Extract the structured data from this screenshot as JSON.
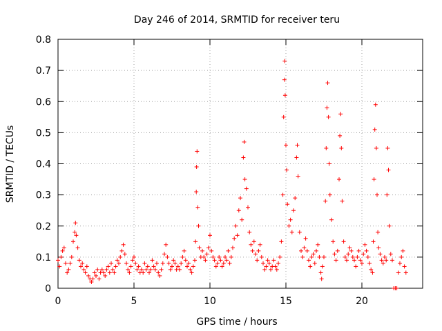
{
  "chart_data": {
    "type": "scatter",
    "title": "Day 246 of 2014, SRMTID for receiver teru",
    "xlabel": "GPS time / hours",
    "ylabel": "SRMTID / TECUs",
    "xlim": [
      0,
      24
    ],
    "ylim": [
      0,
      0.8
    ],
    "xticks": [
      0,
      5,
      10,
      15,
      20
    ],
    "yticks": [
      0,
      0.1,
      0.2,
      0.3,
      0.4,
      0.5,
      0.6,
      0.7,
      0.8
    ],
    "grid": true,
    "marker": "+",
    "color": "#ff0000",
    "series": [
      {
        "name": "SRMTID",
        "points": [
          [
            0.0,
            0.09
          ],
          [
            0.1,
            0.07
          ],
          [
            0.2,
            0.1
          ],
          [
            0.3,
            0.12
          ],
          [
            0.4,
            0.13
          ],
          [
            0.5,
            0.08
          ],
          [
            0.6,
            0.05
          ],
          [
            0.7,
            0.06
          ],
          [
            0.8,
            0.08
          ],
          [
            0.9,
            0.1
          ],
          [
            1.0,
            0.15
          ],
          [
            1.1,
            0.18
          ],
          [
            1.15,
            0.21
          ],
          [
            1.2,
            0.17
          ],
          [
            1.3,
            0.13
          ],
          [
            1.4,
            0.09
          ],
          [
            1.5,
            0.07
          ],
          [
            1.6,
            0.08
          ],
          [
            1.7,
            0.06
          ],
          [
            1.8,
            0.05
          ],
          [
            1.9,
            0.07
          ],
          [
            2.0,
            0.04
          ],
          [
            2.1,
            0.03
          ],
          [
            2.2,
            0.02
          ],
          [
            2.3,
            0.03
          ],
          [
            2.4,
            0.05
          ],
          [
            2.5,
            0.04
          ],
          [
            2.6,
            0.06
          ],
          [
            2.7,
            0.03
          ],
          [
            2.8,
            0.05
          ],
          [
            2.9,
            0.06
          ],
          [
            3.0,
            0.05
          ],
          [
            3.1,
            0.04
          ],
          [
            3.2,
            0.06
          ],
          [
            3.3,
            0.07
          ],
          [
            3.4,
            0.05
          ],
          [
            3.5,
            0.08
          ],
          [
            3.6,
            0.06
          ],
          [
            3.7,
            0.05
          ],
          [
            3.8,
            0.07
          ],
          [
            3.9,
            0.09
          ],
          [
            4.0,
            0.08
          ],
          [
            4.1,
            0.1
          ],
          [
            4.2,
            0.12
          ],
          [
            4.3,
            0.14
          ],
          [
            4.4,
            0.11
          ],
          [
            4.5,
            0.08
          ],
          [
            4.6,
            0.06
          ],
          [
            4.7,
            0.05
          ],
          [
            4.8,
            0.07
          ],
          [
            4.9,
            0.09
          ],
          [
            5.0,
            0.1
          ],
          [
            5.1,
            0.08
          ],
          [
            5.2,
            0.06
          ],
          [
            5.3,
            0.07
          ],
          [
            5.4,
            0.05
          ],
          [
            5.5,
            0.06
          ],
          [
            5.6,
            0.05
          ],
          [
            5.7,
            0.08
          ],
          [
            5.8,
            0.06
          ],
          [
            5.9,
            0.07
          ],
          [
            6.0,
            0.05
          ],
          [
            6.1,
            0.06
          ],
          [
            6.2,
            0.09
          ],
          [
            6.3,
            0.07
          ],
          [
            6.4,
            0.06
          ],
          [
            6.5,
            0.08
          ],
          [
            6.6,
            0.05
          ],
          [
            6.7,
            0.04
          ],
          [
            6.8,
            0.06
          ],
          [
            6.9,
            0.08
          ],
          [
            7.0,
            0.11
          ],
          [
            7.1,
            0.14
          ],
          [
            7.2,
            0.1
          ],
          [
            7.3,
            0.08
          ],
          [
            7.4,
            0.06
          ],
          [
            7.5,
            0.07
          ],
          [
            7.6,
            0.09
          ],
          [
            7.7,
            0.08
          ],
          [
            7.8,
            0.06
          ],
          [
            7.9,
            0.07
          ],
          [
            8.0,
            0.06
          ],
          [
            8.1,
            0.08
          ],
          [
            8.2,
            0.1
          ],
          [
            8.3,
            0.12
          ],
          [
            8.4,
            0.09
          ],
          [
            8.5,
            0.07
          ],
          [
            8.6,
            0.08
          ],
          [
            8.7,
            0.06
          ],
          [
            8.8,
            0.05
          ],
          [
            8.9,
            0.07
          ],
          [
            9.0,
            0.09
          ],
          [
            9.05,
            0.15
          ],
          [
            9.1,
            0.31
          ],
          [
            9.12,
            0.39
          ],
          [
            9.15,
            0.44
          ],
          [
            9.2,
            0.26
          ],
          [
            9.25,
            0.2
          ],
          [
            9.3,
            0.13
          ],
          [
            9.4,
            0.1
          ],
          [
            9.5,
            0.12
          ],
          [
            9.6,
            0.1
          ],
          [
            9.7,
            0.09
          ],
          [
            9.8,
            0.11
          ],
          [
            9.9,
            0.13
          ],
          [
            10.0,
            0.17
          ],
          [
            10.1,
            0.12
          ],
          [
            10.2,
            0.1
          ],
          [
            10.3,
            0.09
          ],
          [
            10.4,
            0.07
          ],
          [
            10.5,
            0.08
          ],
          [
            10.6,
            0.1
          ],
          [
            10.7,
            0.09
          ],
          [
            10.8,
            0.07
          ],
          [
            10.9,
            0.08
          ],
          [
            11.0,
            0.1
          ],
          [
            11.1,
            0.09
          ],
          [
            11.2,
            0.12
          ],
          [
            11.3,
            0.08
          ],
          [
            11.4,
            0.1
          ],
          [
            11.5,
            0.13
          ],
          [
            11.6,
            0.16
          ],
          [
            11.7,
            0.2
          ],
          [
            11.8,
            0.17
          ],
          [
            11.9,
            0.25
          ],
          [
            12.0,
            0.29
          ],
          [
            12.1,
            0.22
          ],
          [
            12.2,
            0.42
          ],
          [
            12.25,
            0.47
          ],
          [
            12.3,
            0.35
          ],
          [
            12.4,
            0.32
          ],
          [
            12.5,
            0.26
          ],
          [
            12.6,
            0.18
          ],
          [
            12.7,
            0.14
          ],
          [
            12.8,
            0.12
          ],
          [
            12.9,
            0.15
          ],
          [
            13.0,
            0.11
          ],
          [
            13.1,
            0.09
          ],
          [
            13.2,
            0.12
          ],
          [
            13.3,
            0.14
          ],
          [
            13.4,
            0.1
          ],
          [
            13.5,
            0.08
          ],
          [
            13.6,
            0.06
          ],
          [
            13.7,
            0.07
          ],
          [
            13.8,
            0.09
          ],
          [
            13.9,
            0.08
          ],
          [
            14.0,
            0.06
          ],
          [
            14.1,
            0.07
          ],
          [
            14.2,
            0.09
          ],
          [
            14.3,
            0.07
          ],
          [
            14.4,
            0.06
          ],
          [
            14.5,
            0.08
          ],
          [
            14.6,
            0.1
          ],
          [
            14.7,
            0.15
          ],
          [
            14.8,
            0.3
          ],
          [
            14.85,
            0.55
          ],
          [
            14.9,
            0.67
          ],
          [
            14.92,
            0.73
          ],
          [
            14.95,
            0.62
          ],
          [
            15.0,
            0.46
          ],
          [
            15.05,
            0.38
          ],
          [
            15.1,
            0.27
          ],
          [
            15.2,
            0.2
          ],
          [
            15.3,
            0.22
          ],
          [
            15.4,
            0.18
          ],
          [
            15.5,
            0.25
          ],
          [
            15.6,
            0.29
          ],
          [
            15.7,
            0.42
          ],
          [
            15.75,
            0.46
          ],
          [
            15.8,
            0.36
          ],
          [
            15.9,
            0.18
          ],
          [
            16.0,
            0.12
          ],
          [
            16.1,
            0.1
          ],
          [
            16.2,
            0.13
          ],
          [
            16.3,
            0.16
          ],
          [
            16.4,
            0.12
          ],
          [
            16.5,
            0.09
          ],
          [
            16.6,
            0.07
          ],
          [
            16.7,
            0.1
          ],
          [
            16.8,
            0.11
          ],
          [
            16.9,
            0.08
          ],
          [
            17.0,
            0.12
          ],
          [
            17.1,
            0.14
          ],
          [
            17.2,
            0.1
          ],
          [
            17.3,
            0.05
          ],
          [
            17.35,
            0.03
          ],
          [
            17.4,
            0.07
          ],
          [
            17.5,
            0.1
          ],
          [
            17.6,
            0.28
          ],
          [
            17.65,
            0.45
          ],
          [
            17.7,
            0.58
          ],
          [
            17.75,
            0.66
          ],
          [
            17.8,
            0.55
          ],
          [
            17.85,
            0.4
          ],
          [
            17.9,
            0.3
          ],
          [
            18.0,
            0.22
          ],
          [
            18.1,
            0.15
          ],
          [
            18.2,
            0.11
          ],
          [
            18.3,
            0.09
          ],
          [
            18.4,
            0.12
          ],
          [
            18.5,
            0.35
          ],
          [
            18.55,
            0.49
          ],
          [
            18.6,
            0.56
          ],
          [
            18.65,
            0.45
          ],
          [
            18.7,
            0.28
          ],
          [
            18.8,
            0.15
          ],
          [
            18.9,
            0.1
          ],
          [
            19.0,
            0.09
          ],
          [
            19.1,
            0.11
          ],
          [
            19.2,
            0.13
          ],
          [
            19.3,
            0.12
          ],
          [
            19.4,
            0.1
          ],
          [
            19.5,
            0.09
          ],
          [
            19.6,
            0.07
          ],
          [
            19.7,
            0.1
          ],
          [
            19.8,
            0.12
          ],
          [
            19.9,
            0.09
          ],
          [
            20.0,
            0.08
          ],
          [
            20.1,
            0.11
          ],
          [
            20.2,
            0.14
          ],
          [
            20.3,
            0.12
          ],
          [
            20.4,
            0.1
          ],
          [
            20.5,
            0.08
          ],
          [
            20.6,
            0.06
          ],
          [
            20.7,
            0.05
          ],
          [
            20.75,
            0.15
          ],
          [
            20.8,
            0.35
          ],
          [
            20.85,
            0.51
          ],
          [
            20.9,
            0.59
          ],
          [
            20.95,
            0.45
          ],
          [
            21.0,
            0.3
          ],
          [
            21.05,
            0.18
          ],
          [
            21.1,
            0.13
          ],
          [
            21.2,
            0.11
          ],
          [
            21.3,
            0.09
          ],
          [
            21.4,
            0.08
          ],
          [
            21.5,
            0.1
          ],
          [
            21.6,
            0.09
          ],
          [
            21.65,
            0.3
          ],
          [
            21.7,
            0.45
          ],
          [
            21.75,
            0.38
          ],
          [
            21.8,
            0.2
          ],
          [
            21.9,
            0.11
          ],
          [
            22.0,
            0.09
          ],
          [
            22.1,
            0.0
          ],
          [
            22.2,
            0.0
          ],
          [
            22.3,
            0.0
          ],
          [
            22.4,
            0.05
          ],
          [
            22.5,
            0.08
          ],
          [
            22.6,
            0.1
          ],
          [
            22.7,
            0.12
          ],
          [
            22.8,
            0.07
          ],
          [
            22.9,
            0.05
          ]
        ]
      }
    ]
  }
}
